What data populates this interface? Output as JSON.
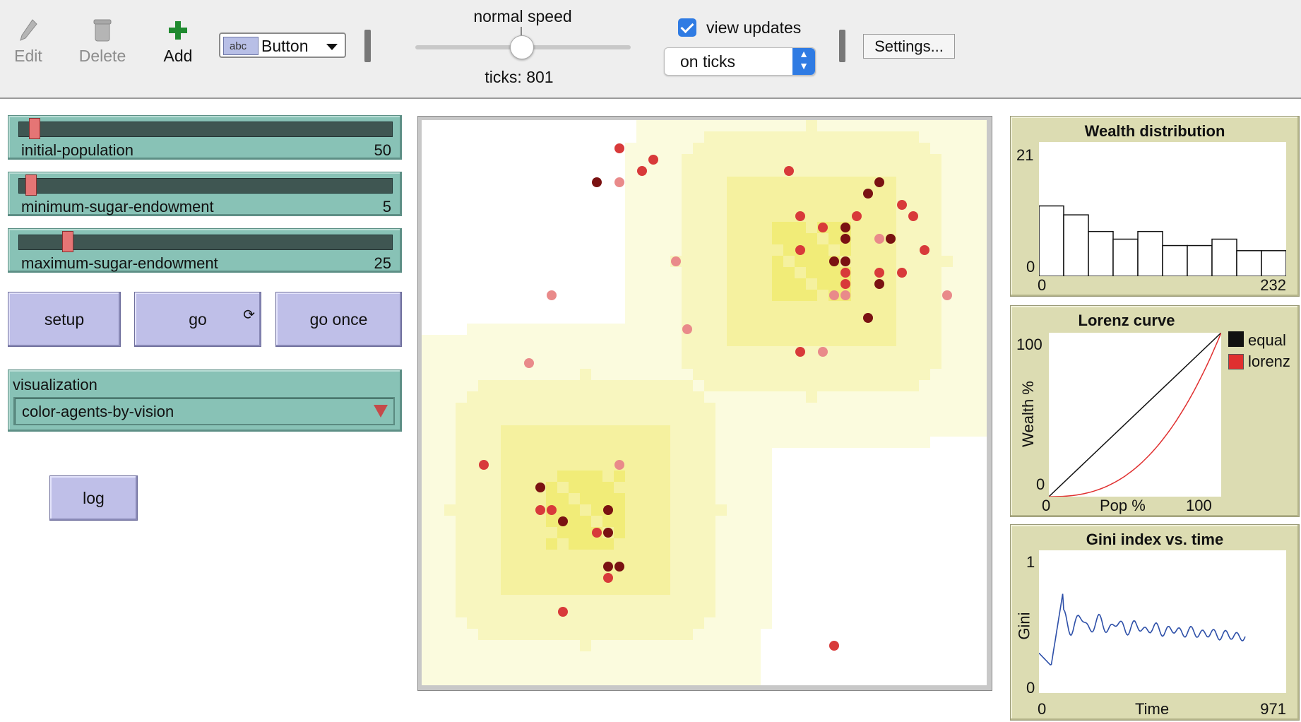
{
  "toolbar": {
    "edit_label": "Edit",
    "delete_label": "Delete",
    "add_label": "Add",
    "widget_type": "Button",
    "widget_type_icon_text": "abc",
    "speed_label": "normal speed",
    "speed_value": 0.5,
    "ticks_label": "ticks: 801",
    "view_updates_label": "view updates",
    "view_updates_checked": true,
    "update_mode": "on ticks",
    "settings_label": "Settings..."
  },
  "sliders": [
    {
      "name": "initial-population",
      "value": "50",
      "fraction": 0.03
    },
    {
      "name": "minimum-sugar-endowment",
      "value": "5",
      "fraction": 0.02
    },
    {
      "name": "maximum-sugar-endowment",
      "value": "25",
      "fraction": 0.12
    }
  ],
  "buttons": {
    "setup": "setup",
    "go": "go",
    "go_once": "go once",
    "log": "log"
  },
  "chooser": {
    "name": "visualization",
    "value": "color-agents-by-vision"
  },
  "plots": {
    "wealth": {
      "title": "Wealth distribution",
      "y_max": "21",
      "y_min": "0",
      "x_min": "0",
      "x_max": "232",
      "bars": [
        11,
        9.6,
        7,
        5.8,
        7,
        4.8,
        4.8,
        5.8,
        4,
        4
      ],
      "bars_max": 21
    },
    "lorenz": {
      "title": "Lorenz curve",
      "y_max": "100",
      "y_min": "0",
      "x_min": "0",
      "x_max": "100",
      "ylabel": "Wealth %",
      "xlabel": "Pop %",
      "legend_equal": "equal",
      "legend_lorenz": "lorenz",
      "equal_color": "#111111",
      "lorenz_color": "#e03030"
    },
    "gini": {
      "title": "Gini index vs. time",
      "y_max": "1",
      "y_min": "0",
      "x_min": "0",
      "x_max": "971",
      "ylabel": "Gini",
      "xlabel": "Time",
      "line_color": "#2d4fa8"
    }
  },
  "world": {
    "agent_colors": {
      "dark": "#7a1212",
      "mid": "#d83a3a",
      "light": "#e98a8a"
    }
  }
}
